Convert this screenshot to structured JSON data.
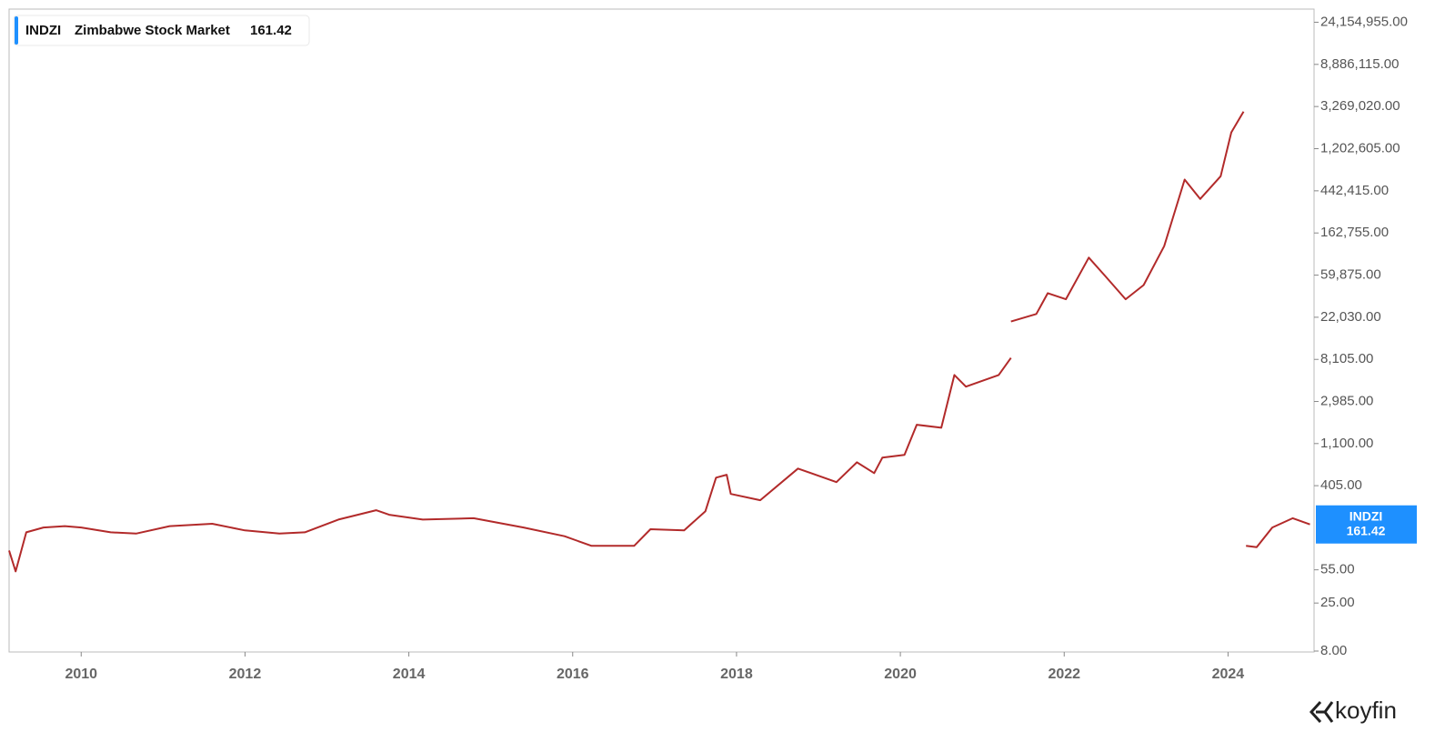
{
  "chart_data": {
    "type": "line",
    "log_scale": true,
    "xlim": [
      2009.12,
      2025.05
    ],
    "xticks": [
      2010,
      2012,
      2014,
      2016,
      2018,
      2020,
      2022,
      2024
    ],
    "ylim": [
      8,
      33000000
    ],
    "yticks": [
      {
        "value": 8,
        "label": "8.00"
      },
      {
        "value": 25,
        "label": "25.00"
      },
      {
        "value": 55,
        "label": "55.00"
      },
      {
        "value": 405,
        "label": "405.00"
      },
      {
        "value": 1100,
        "label": "1,100.00"
      },
      {
        "value": 2985,
        "label": "2,985.00"
      },
      {
        "value": 8105,
        "label": "8,105.00"
      },
      {
        "value": 22030,
        "label": "22,030.00"
      },
      {
        "value": 59875,
        "label": "59,875.00"
      },
      {
        "value": 162755,
        "label": "162,755.00"
      },
      {
        "value": 442415,
        "label": "442,415.00"
      },
      {
        "value": 1202605,
        "label": "1,202,605.00"
      },
      {
        "value": 3269020,
        "label": "3,269,020.00"
      },
      {
        "value": 8886115,
        "label": "8,886,115.00"
      },
      {
        "value": 24154955,
        "label": "24,154,955.00"
      }
    ],
    "x": [
      2009.12,
      2009.2,
      2009.33,
      2009.54,
      2009.8,
      2010,
      2010.36,
      2010.67,
      2011.08,
      2011.6,
      2012,
      2012.42,
      2012.73,
      2013.14,
      2013.6,
      2013.76,
      2014.17,
      2014.79,
      2015.4,
      2015.9,
      2016.23,
      2016.75,
      2016.95,
      2017.36,
      2017.62,
      2017.75,
      2017.88,
      2017.93,
      2018.29,
      2018.75,
      2019.22,
      2019.47,
      2019.68,
      2019.78,
      2020.05,
      2020.2,
      2020.5,
      2020.66,
      2020.8,
      2021.2,
      2021.35,
      null,
      2021.35,
      2021.66,
      2021.8,
      2022.02,
      2022.3,
      2022.5,
      2022.75,
      2022.97,
      2023.22,
      2023.47,
      2023.66,
      2023.91,
      2024.04,
      2024.19,
      null,
      2024.22,
      2024.35,
      2024.54,
      2024.79,
      2025.0
    ],
    "series": [
      {
        "name": "INDZI",
        "description": "Zimbabwe Stock Market",
        "color": "#b22a2a",
        "values": [
          87,
          53,
          134,
          150,
          155,
          150,
          134,
          130,
          155,
          164,
          140,
          130,
          134,
          181,
          226,
          203,
          181,
          187,
          150,
          122,
          97,
          97,
          144,
          140,
          221,
          490,
          525,
          333,
          287,
          608,
          441,
          705,
          546,
          787,
          841,
          1720,
          1600,
          5600,
          4250,
          5600,
          8400,
          null,
          19900,
          23800,
          39000,
          33800,
          90700,
          58700,
          33800,
          47300,
          119000,
          577000,
          365000,
          625000,
          1770000,
          2900000,
          null,
          97,
          94,
          150,
          187,
          161.42
        ]
      }
    ],
    "last_value": 161.42,
    "label_color": "#1e90ff"
  },
  "branding": "koyfin"
}
